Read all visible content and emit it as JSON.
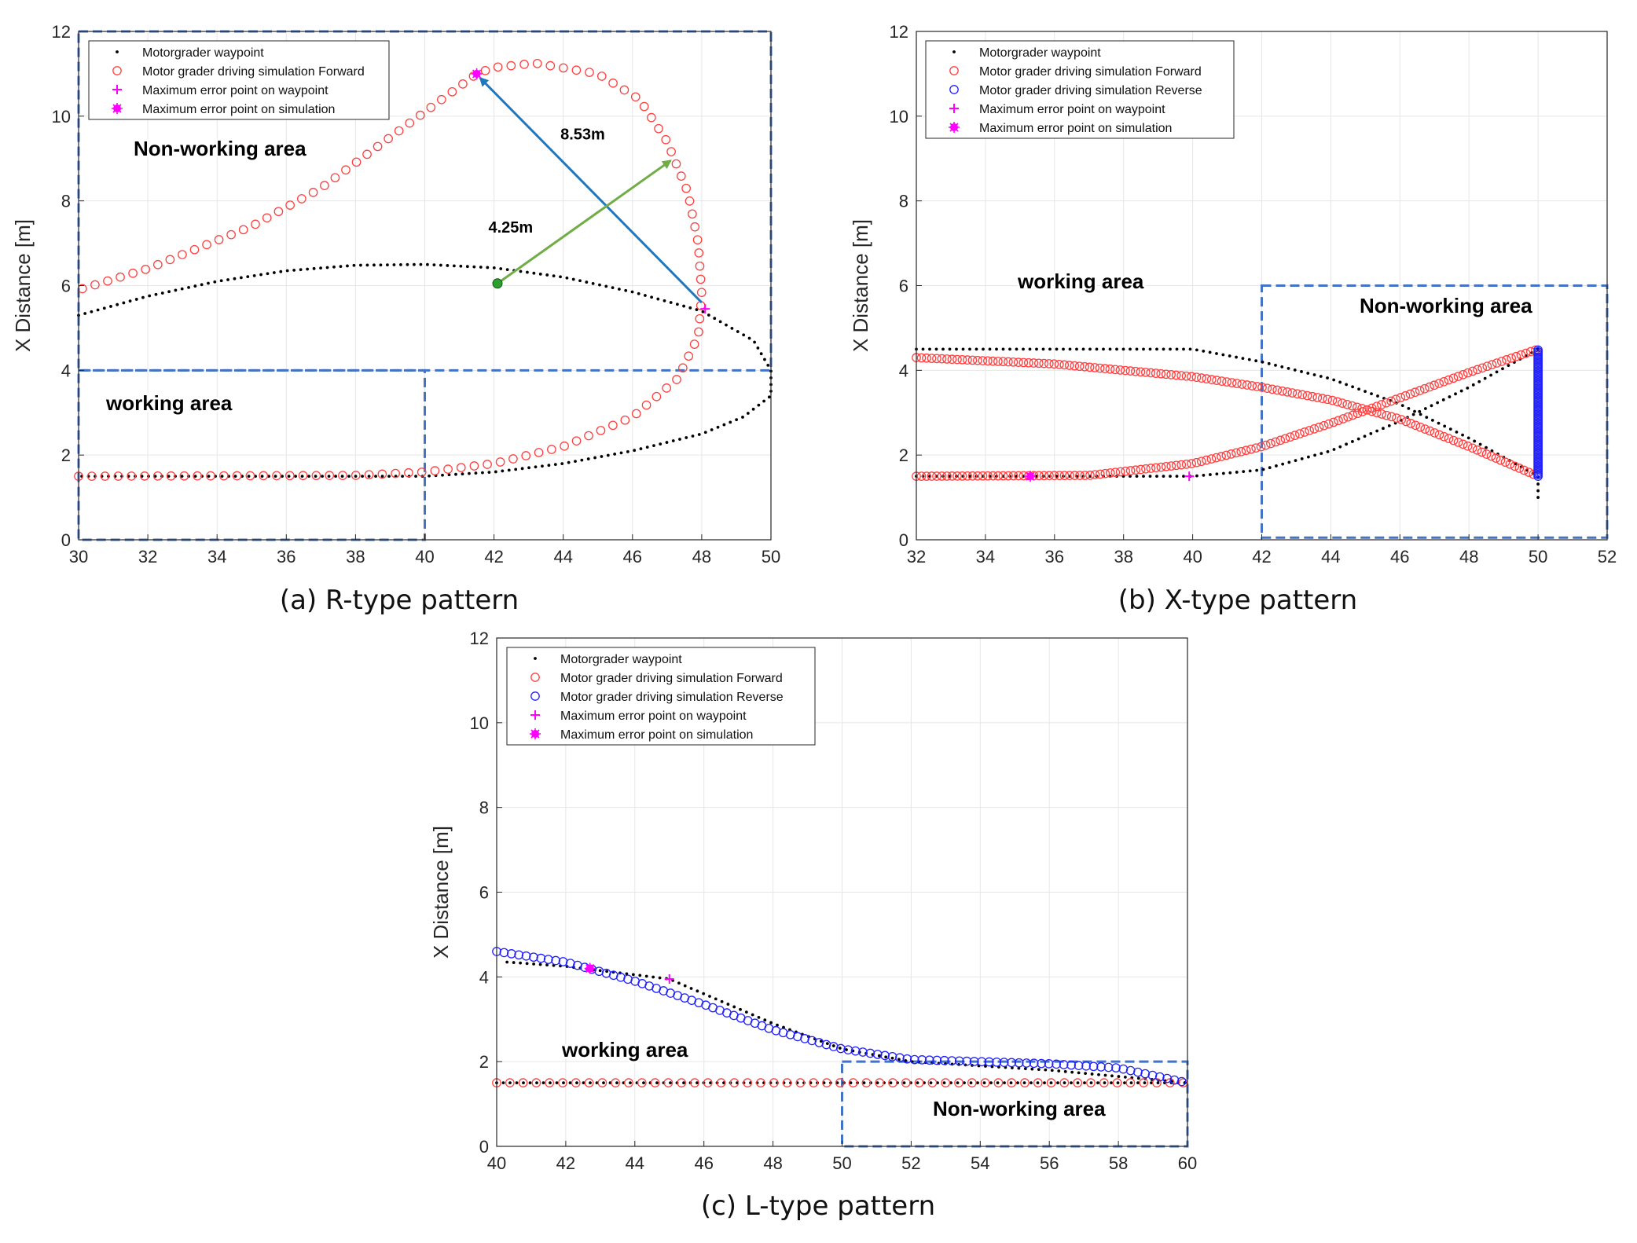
{
  "chart_data": [
    {
      "type": "scatter",
      "caption": "(a) R-type pattern",
      "ylabel": "X Distance [m]",
      "xlim": [
        30,
        50
      ],
      "ylim": [
        0,
        12
      ],
      "xticks": [
        30,
        32,
        34,
        36,
        38,
        40,
        42,
        44,
        46,
        48,
        50
      ],
      "yticks": [
        0,
        2,
        4,
        6,
        8,
        10,
        12
      ],
      "grid": true,
      "legend": {
        "position": "top-left",
        "entries": [
          {
            "label": "Motorgrader waypoint",
            "marker": "dot",
            "color": "#000000"
          },
          {
            "label": "Motor grader driving simulation Forward",
            "marker": "circle",
            "color": "#ff4040"
          },
          {
            "label": "Maximum error point on waypoint",
            "marker": "plus",
            "color": "#ff00ff"
          },
          {
            "label": "Maximum error point on simulation",
            "marker": "asterisk",
            "color": "#ff00ff"
          }
        ]
      },
      "series": [
        {
          "kind": "waypoint",
          "color": "#000000",
          "points": [
            [
              30,
              5.3
            ],
            [
              32,
              5.75
            ],
            [
              34,
              6.1
            ],
            [
              36,
              6.35
            ],
            [
              38,
              6.48
            ],
            [
              40,
              6.5
            ],
            [
              42,
              6.42
            ],
            [
              44,
              6.2
            ],
            [
              46,
              5.85
            ],
            [
              48,
              5.4
            ],
            [
              49.5,
              4.7
            ],
            [
              50,
              4.0
            ],
            [
              50,
              3.4
            ],
            [
              49.2,
              2.9
            ],
            [
              48,
              2.5
            ],
            [
              46,
              2.1
            ],
            [
              44,
              1.8
            ],
            [
              42,
              1.6
            ],
            [
              40,
              1.5
            ],
            [
              30,
              1.5
            ]
          ]
        },
        {
          "kind": "forward",
          "color": "#ff4040",
          "points": [
            [
              30,
              1.5
            ],
            [
              38,
              1.52
            ],
            [
              40,
              1.6
            ],
            [
              42,
              1.8
            ],
            [
              44,
              2.2
            ],
            [
              46,
              2.9
            ],
            [
              47.3,
              3.8
            ],
            [
              47.9,
              4.8
            ],
            [
              48,
              5.8
            ],
            [
              47.9,
              7.0
            ],
            [
              47.6,
              8.2
            ],
            [
              47,
              9.4
            ],
            [
              46.2,
              10.4
            ],
            [
              45,
              11.0
            ],
            [
              43.2,
              11.25
            ],
            [
              42,
              11.15
            ],
            [
              41.5,
              11.0
            ],
            [
              40.5,
              10.4
            ],
            [
              39,
              9.5
            ],
            [
              37,
              8.3
            ],
            [
              35,
              7.4
            ],
            [
              32,
              6.4
            ],
            [
              30,
              5.9
            ]
          ]
        }
      ],
      "max_error_waypoint": [
        48.1,
        5.45
      ],
      "max_error_simulation": [
        41.5,
        11.0
      ],
      "regions": [
        {
          "label": "Non-working area",
          "x": [
            30,
            50
          ],
          "y": [
            4,
            12
          ]
        },
        {
          "label": "working area",
          "x": [
            30,
            40
          ],
          "y": [
            0,
            4
          ]
        }
      ],
      "annotations": [
        {
          "text": "8.53m",
          "from": [
            48,
            5.6
          ],
          "to": [
            41.6,
            10.9
          ],
          "color": "#1f77c0"
        },
        {
          "text": "4.25m",
          "from": [
            42.1,
            6.05
          ],
          "to": [
            47.1,
            8.95
          ],
          "color": "#70ad47"
        }
      ],
      "center_point": [
        42.1,
        6.05
      ]
    },
    {
      "type": "scatter",
      "caption": "(b) X-type pattern",
      "ylabel": "X Distance [m]",
      "xlim": [
        32,
        52
      ],
      "ylim": [
        0,
        12
      ],
      "xticks": [
        32,
        34,
        36,
        38,
        40,
        42,
        44,
        46,
        48,
        50,
        52
      ],
      "yticks": [
        0,
        2,
        4,
        6,
        8,
        10,
        12
      ],
      "grid": true,
      "legend": {
        "position": "top-left",
        "entries": [
          {
            "label": "Motorgrader waypoint",
            "marker": "dot",
            "color": "#000000"
          },
          {
            "label": "Motor grader driving simulation Forward",
            "marker": "circle",
            "color": "#ff4040"
          },
          {
            "label": "Motor grader driving simulation  Reverse",
            "marker": "circle",
            "color": "#2020ff"
          },
          {
            "label": "Maximum error point on waypoint",
            "marker": "plus",
            "color": "#ff00ff"
          },
          {
            "label": "Maximum error point on simulation",
            "marker": "asterisk",
            "color": "#ff00ff"
          }
        ]
      },
      "series": [
        {
          "kind": "waypoint",
          "color": "#000000",
          "points": [
            [
              32,
              4.5
            ],
            [
              40,
              4.5
            ],
            [
              42,
              4.2
            ],
            [
              44,
              3.8
            ],
            [
              46,
              3.2
            ],
            [
              48,
              2.4
            ],
            [
              50,
              1.5
            ]
          ]
        },
        {
          "kind": "waypoint",
          "color": "#000000",
          "points": [
            [
              32,
              1.5
            ],
            [
              40,
              1.5
            ],
            [
              42,
              1.65
            ],
            [
              44,
              2.1
            ],
            [
              46,
              2.8
            ],
            [
              48,
              3.6
            ],
            [
              50,
              4.5
            ]
          ]
        },
        {
          "kind": "waypoint",
          "color": "#000000",
          "points": [
            [
              50,
              1.0
            ],
            [
              50,
              1.5
            ]
          ]
        },
        {
          "kind": "forward",
          "color": "#ff4040",
          "points": [
            [
              32,
              4.3
            ],
            [
              36,
              4.15
            ],
            [
              40,
              3.85
            ],
            [
              42,
              3.6
            ],
            [
              44,
              3.3
            ],
            [
              46,
              2.85
            ],
            [
              48,
              2.2
            ],
            [
              50,
              1.5
            ]
          ]
        },
        {
          "kind": "forward",
          "color": "#ff4040",
          "points": [
            [
              32,
              1.5
            ],
            [
              37,
              1.52
            ],
            [
              40,
              1.8
            ],
            [
              42,
              2.2
            ],
            [
              44,
              2.75
            ],
            [
              46,
              3.35
            ],
            [
              48,
              3.95
            ],
            [
              50,
              4.5
            ]
          ]
        },
        {
          "kind": "reverse",
          "color": "#2020ff",
          "points": [
            [
              50,
              1.5
            ],
            [
              50,
              4.5
            ]
          ]
        }
      ],
      "max_error_waypoint": [
        39.9,
        1.5
      ],
      "max_error_simulation": [
        35.3,
        1.5
      ],
      "regions": [
        {
          "label": "Non-working area",
          "x": [
            42,
            52
          ],
          "y": [
            0.05,
            6
          ]
        }
      ],
      "free_labels": [
        {
          "label": "working area",
          "at": [
            37,
            6.1
          ]
        }
      ]
    },
    {
      "type": "scatter",
      "caption": "(c) L-type pattern",
      "ylabel": "X Distance [m]",
      "xlim": [
        40,
        60
      ],
      "ylim": [
        0,
        12
      ],
      "xticks": [
        40,
        42,
        44,
        46,
        48,
        50,
        52,
        54,
        56,
        58,
        60
      ],
      "yticks": [
        0,
        2,
        4,
        6,
        8,
        10,
        12
      ],
      "grid": true,
      "legend": {
        "position": "top-left",
        "entries": [
          {
            "label": "Motorgrader waypoint",
            "marker": "dot",
            "color": "#000000"
          },
          {
            "label": "Motor grader driving simulation Forward",
            "marker": "circle",
            "color": "#ff4040"
          },
          {
            "label": "Motor grader driving simulation  Reverse",
            "marker": "circle",
            "color": "#2020ff"
          },
          {
            "label": "Maximum error point on waypoint",
            "marker": "plus",
            "color": "#ff00ff"
          },
          {
            "label": "Maximum error point on simulation",
            "marker": "asterisk",
            "color": "#ff00ff"
          }
        ]
      },
      "series": [
        {
          "kind": "waypoint",
          "color": "#000000",
          "points": [
            [
              40.3,
              4.35
            ],
            [
              42,
              4.25
            ],
            [
              44,
              4.05
            ],
            [
              45,
              3.95
            ],
            [
              46,
              3.6
            ],
            [
              48,
              2.9
            ],
            [
              50,
              2.3
            ],
            [
              52,
              2.0
            ],
            [
              54,
              1.9
            ],
            [
              56,
              1.8
            ],
            [
              58,
              1.65
            ],
            [
              60,
              1.5
            ]
          ]
        },
        {
          "kind": "waypoint",
          "color": "#000000",
          "points": [
            [
              40,
              1.5
            ],
            [
              60,
              1.5
            ]
          ]
        },
        {
          "kind": "forward",
          "color": "#ff4040",
          "points": [
            [
              40,
              1.5
            ],
            [
              60,
              1.5
            ]
          ]
        },
        {
          "kind": "reverse",
          "color": "#2020ff",
          "points": [
            [
              40,
              4.6
            ],
            [
              42,
              4.35
            ],
            [
              44,
              3.9
            ],
            [
              46,
              3.35
            ],
            [
              48,
              2.75
            ],
            [
              50,
              2.3
            ],
            [
              52,
              2.05
            ],
            [
              54,
              2.0
            ],
            [
              56,
              1.95
            ],
            [
              58,
              1.85
            ],
            [
              60,
              1.5
            ]
          ]
        }
      ],
      "max_error_waypoint": [
        45,
        3.95
      ],
      "max_error_simulation": [
        42.7,
        4.2
      ],
      "regions": [
        {
          "label": "Non-working area",
          "x": [
            50,
            60
          ],
          "y": [
            0,
            2
          ]
        }
      ],
      "free_labels": [
        {
          "label": "working area",
          "at": [
            43.5,
            2.65
          ]
        }
      ]
    }
  ]
}
